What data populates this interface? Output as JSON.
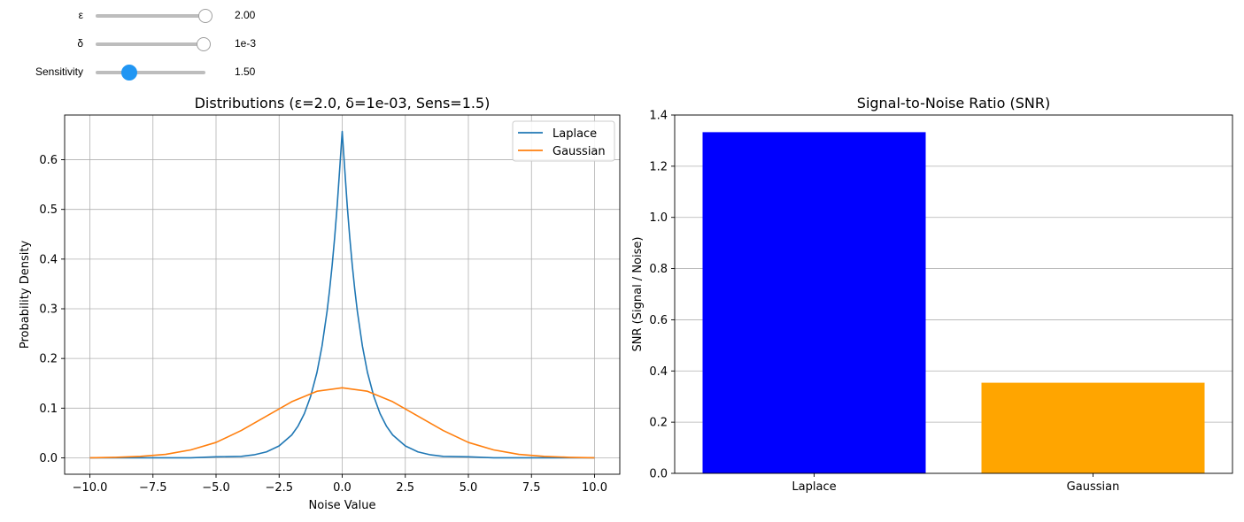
{
  "controls": {
    "sliders": [
      {
        "label": "ε",
        "value_text": "2.00",
        "fraction": 1.0,
        "active": false
      },
      {
        "label": "δ",
        "value_text": "1e-3",
        "fraction": 0.98,
        "active": false
      },
      {
        "label": "Sensitivity",
        "value_text": "1.50",
        "fraction": 0.3,
        "active": true
      }
    ]
  },
  "chart_data": [
    {
      "type": "line",
      "title": "Distributions (ε=2.0, δ=1e-03, Sens=1.5)",
      "xlabel": "Noise Value",
      "ylabel": "Probability Density",
      "xlim": [
        -11.0,
        11.0
      ],
      "ylim": [
        -0.033,
        0.69
      ],
      "xticks": [
        -10.0,
        -7.5,
        -5.0,
        -2.5,
        0.0,
        2.5,
        5.0,
        7.5,
        10.0
      ],
      "xtick_labels": [
        "−10.0",
        "−7.5",
        "−5.0",
        "−2.5",
        "0.0",
        "2.5",
        "5.0",
        "7.5",
        "10.0"
      ],
      "yticks": [
        0.0,
        0.1,
        0.2,
        0.3,
        0.4,
        0.5,
        0.6
      ],
      "ytick_labels": [
        "0.0",
        "0.1",
        "0.2",
        "0.3",
        "0.4",
        "0.5",
        "0.6"
      ],
      "grid": true,
      "legend": "upper right",
      "series": [
        {
          "name": "Laplace",
          "color": "#1f77b4",
          "x": [
            -10.0,
            -8.0,
            -6.0,
            -5.0,
            -4.0,
            -3.5,
            -3.0,
            -2.5,
            -2.0,
            -1.75,
            -1.5,
            -1.25,
            -1.0,
            -0.8,
            -0.6,
            -0.5,
            -0.4,
            -0.3,
            -0.2,
            -0.1,
            0.0,
            0.1,
            0.2,
            0.3,
            0.4,
            0.5,
            0.6,
            0.8,
            1.0,
            1.25,
            1.5,
            1.75,
            2.0,
            2.5,
            3.0,
            3.5,
            4.0,
            5.0,
            6.0,
            8.0,
            10.0
          ],
          "y": [
            0.0,
            0.0,
            0.0,
            0.002,
            0.003,
            0.006,
            0.012,
            0.024,
            0.046,
            0.064,
            0.089,
            0.124,
            0.172,
            0.225,
            0.295,
            0.338,
            0.387,
            0.443,
            0.507,
            0.581,
            0.657,
            0.581,
            0.507,
            0.443,
            0.387,
            0.338,
            0.295,
            0.225,
            0.172,
            0.124,
            0.089,
            0.064,
            0.046,
            0.024,
            0.012,
            0.006,
            0.003,
            0.002,
            0.0,
            0.0,
            0.0
          ]
        },
        {
          "name": "Gaussian",
          "color": "#ff7f0e",
          "x": [
            -10.0,
            -9.0,
            -8.0,
            -7.0,
            -6.0,
            -5.0,
            -4.0,
            -3.0,
            -2.0,
            -1.0,
            0.0,
            1.0,
            2.0,
            3.0,
            4.0,
            5.0,
            6.0,
            7.0,
            8.0,
            9.0,
            10.0
          ],
          "y": [
            0.0,
            0.001,
            0.003,
            0.007,
            0.016,
            0.031,
            0.055,
            0.084,
            0.113,
            0.134,
            0.141,
            0.134,
            0.113,
            0.084,
            0.055,
            0.031,
            0.016,
            0.007,
            0.003,
            0.001,
            0.0
          ]
        }
      ]
    },
    {
      "type": "bar",
      "title": "Signal-to-Noise Ratio (SNR)",
      "xlabel": "",
      "ylabel": "SNR (Signal / Noise)",
      "categories": [
        "Laplace",
        "Gaussian"
      ],
      "values": [
        1.333,
        0.354
      ],
      "colors": [
        "#0000ff",
        "#ffa500"
      ],
      "ylim": [
        0.0,
        1.4
      ],
      "yticks": [
        0.0,
        0.2,
        0.4,
        0.6,
        0.8,
        1.0,
        1.2,
        1.4
      ],
      "ytick_labels": [
        "0.0",
        "0.2",
        "0.4",
        "0.6",
        "0.8",
        "1.0",
        "1.2",
        "1.4"
      ],
      "grid": "y"
    }
  ]
}
